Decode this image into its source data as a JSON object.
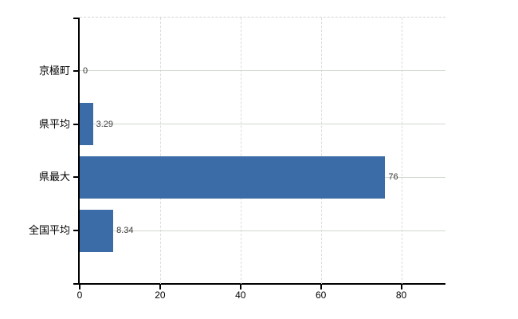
{
  "chart_data": {
    "type": "bar",
    "orientation": "horizontal",
    "categories": [
      "京極町",
      "県平均",
      "県最大",
      "全国平均"
    ],
    "values": [
      0,
      3.29,
      76,
      8.34
    ],
    "value_labels": [
      "0",
      "3.29",
      "76",
      "8.34"
    ],
    "title": "",
    "xlabel": "",
    "ylabel": "",
    "xlim": [
      0,
      91
    ],
    "xticks": [
      0,
      20,
      40,
      60,
      80
    ],
    "xtick_labels": [
      "0",
      "20",
      "40",
      "60",
      "80"
    ],
    "grid": "vertical dashed at ticks, horizontal solid at category centers, dashed top border",
    "legend": "none",
    "bar_color": "#3b6ca7",
    "axis_color": "#000000",
    "grid_v_color": "#dcdcdc",
    "grid_h_color": "#d3d8d0",
    "value_label_color": "#3a3a3a"
  }
}
